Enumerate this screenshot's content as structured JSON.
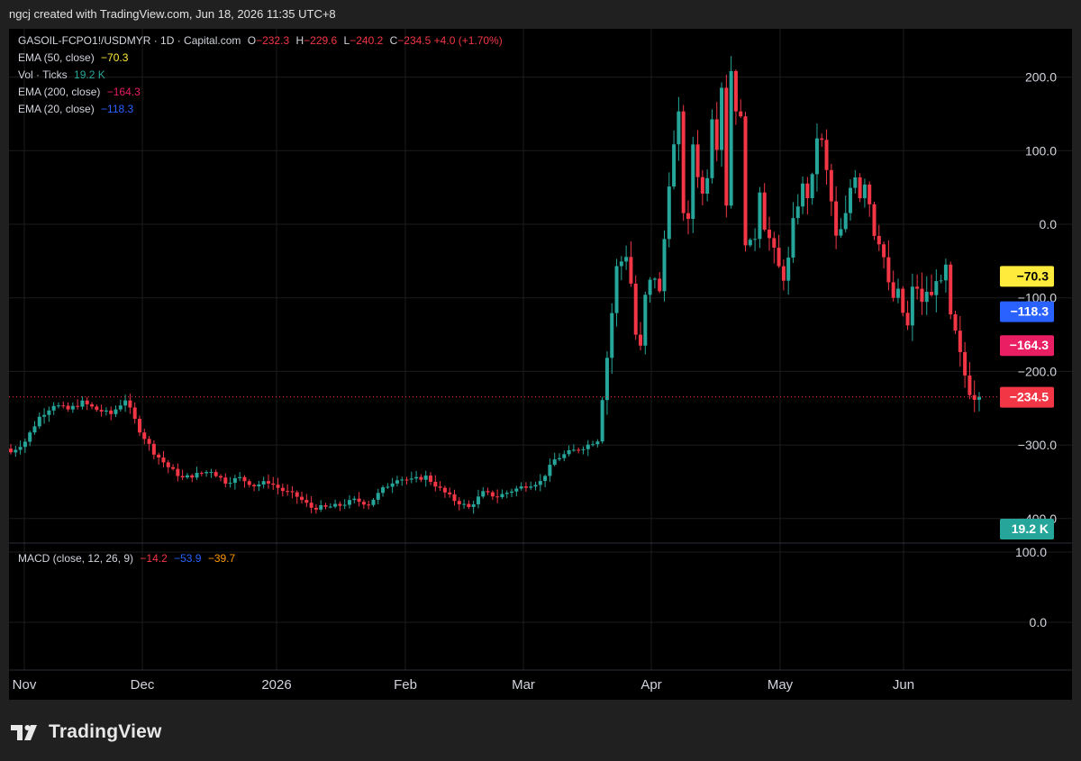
{
  "header": {
    "text": "ngcj created with TradingView.com, Jun 18, 2026 11:35 UTC+8"
  },
  "legend": {
    "symbol": "GASOIL-FCPO1!/USDMYR · 1D · Capital.com",
    "o_label": "O",
    "o_value": "−232.3",
    "h_label": "H",
    "h_value": "−229.6",
    "l_label": "L",
    "l_value": "−240.2",
    "c_label": "C",
    "c_value": "−234.5",
    "change": "+4.0 (+1.70%)",
    "ema50_label": "EMA (50, close)",
    "ema50_value": "−70.3",
    "vol_label": "Vol · Ticks",
    "vol_value": "19.2 K",
    "ema200_label": "EMA (200, close)",
    "ema200_value": "−164.3",
    "ema20_label": "EMA (20, close)",
    "ema20_value": "−118.3"
  },
  "macd_legend": {
    "label": "MACD (close, 12, 26, 9)",
    "v1": "−14.2",
    "v2": "−53.9",
    "v3": "−39.7"
  },
  "footer": {
    "brand": "TradingView"
  },
  "colors": {
    "up": "#26a69a",
    "down": "#f23645",
    "ema50": "#ffeb3b",
    "ema20": "#2962ff",
    "ema200": "#e91e63",
    "volume": "#26a69a"
  },
  "chart_data": {
    "type": "candlestick",
    "price_ticks": [
      "200.0",
      "100.0",
      "0.0",
      "−100.0",
      "−200.0",
      "−300.0",
      "−400.0"
    ],
    "price_tick_values": [
      200,
      100,
      0,
      -100,
      -200,
      -300,
      -400
    ],
    "macd_ticks": [
      "100.0",
      "0.0"
    ],
    "x_labels": [
      "Nov",
      "Dec",
      "2026",
      "Feb",
      "Mar",
      "Apr",
      "May",
      "Jun"
    ],
    "last_price": -234.5,
    "last_price_label": "−234.5",
    "markers": [
      {
        "name": "ema50",
        "value": -70.3,
        "label": "−70.3"
      },
      {
        "name": "ema20",
        "value": -118.3,
        "label": "−118.3"
      },
      {
        "name": "ema200",
        "value": -164.3,
        "label": "−164.3"
      },
      {
        "name": "volume",
        "label": "19.2 K"
      }
    ],
    "anchors": [
      [
        0,
        -310
      ],
      [
        3,
        -295
      ],
      [
        6,
        -262
      ],
      [
        9,
        -245
      ],
      [
        12,
        -252
      ],
      [
        15,
        -242
      ],
      [
        18,
        -252
      ],
      [
        21,
        -258
      ],
      [
        24,
        -238
      ],
      [
        27,
        -280
      ],
      [
        30,
        -310
      ],
      [
        33,
        -330
      ],
      [
        36,
        -345
      ],
      [
        39,
        -340
      ],
      [
        42,
        -335
      ],
      [
        45,
        -350
      ],
      [
        48,
        -345
      ],
      [
        51,
        -355
      ],
      [
        54,
        -350
      ],
      [
        57,
        -362
      ],
      [
        60,
        -370
      ],
      [
        63,
        -385
      ],
      [
        66,
        -385
      ],
      [
        69,
        -382
      ],
      [
        72,
        -375
      ],
      [
        75,
        -380
      ],
      [
        78,
        -360
      ],
      [
        81,
        -345
      ],
      [
        84,
        -348
      ],
      [
        87,
        -343
      ],
      [
        90,
        -360
      ],
      [
        93,
        -375
      ],
      [
        96,
        -385
      ],
      [
        99,
        -365
      ],
      [
        102,
        -370
      ],
      [
        105,
        -362
      ],
      [
        108,
        -355
      ],
      [
        111,
        -350
      ],
      [
        114,
        -320
      ],
      [
        117,
        -310
      ],
      [
        120,
        -303
      ],
      [
        123,
        -293
      ],
      [
        125,
        -180
      ],
      [
        127,
        -60
      ],
      [
        128,
        -50
      ],
      [
        129,
        -40
      ],
      [
        130,
        -80
      ],
      [
        131,
        -150
      ],
      [
        132,
        -170
      ],
      [
        133,
        -100
      ],
      [
        134,
        -80
      ],
      [
        135,
        -70
      ],
      [
        136,
        -95
      ],
      [
        137,
        -20
      ],
      [
        138,
        60
      ],
      [
        139,
        105
      ],
      [
        140,
        145
      ],
      [
        141,
        20
      ],
      [
        142,
        0
      ],
      [
        143,
        110
      ],
      [
        144,
        70
      ],
      [
        145,
        40
      ],
      [
        146,
        70
      ],
      [
        147,
        150
      ],
      [
        148,
        110
      ],
      [
        149,
        190
      ],
      [
        150,
        30
      ],
      [
        151,
        210
      ],
      [
        152,
        160
      ],
      [
        153,
        140
      ],
      [
        154,
        -20
      ],
      [
        155,
        -30
      ],
      [
        156,
        -15
      ],
      [
        157,
        50
      ],
      [
        158,
        0
      ],
      [
        159,
        -20
      ],
      [
        160,
        -40
      ],
      [
        161,
        -60
      ],
      [
        162,
        -70
      ],
      [
        163,
        -50
      ],
      [
        164,
        0
      ],
      [
        165,
        30
      ],
      [
        166,
        50
      ],
      [
        167,
        40
      ],
      [
        168,
        60
      ],
      [
        169,
        120
      ],
      [
        170,
        110
      ],
      [
        171,
        70
      ],
      [
        172,
        30
      ],
      [
        173,
        -20
      ],
      [
        174,
        -10
      ],
      [
        175,
        10
      ],
      [
        176,
        50
      ],
      [
        177,
        70
      ],
      [
        178,
        40
      ],
      [
        179,
        60
      ],
      [
        180,
        30
      ],
      [
        181,
        -10
      ],
      [
        182,
        -20
      ],
      [
        183,
        -45
      ],
      [
        184,
        -85
      ],
      [
        185,
        -100
      ],
      [
        186,
        -95
      ],
      [
        187,
        -120
      ],
      [
        188,
        -140
      ],
      [
        189,
        -90
      ],
      [
        190,
        -85
      ],
      [
        191,
        -110
      ],
      [
        192,
        -90
      ],
      [
        193,
        -100
      ],
      [
        194,
        -70
      ],
      [
        195,
        -85
      ],
      [
        196,
        -60
      ],
      [
        197,
        -130
      ],
      [
        198,
        -150
      ],
      [
        199,
        -180
      ],
      [
        200,
        -205
      ],
      [
        201,
        -225
      ],
      [
        202,
        -232
      ],
      [
        203,
        -234.5
      ]
    ]
  }
}
